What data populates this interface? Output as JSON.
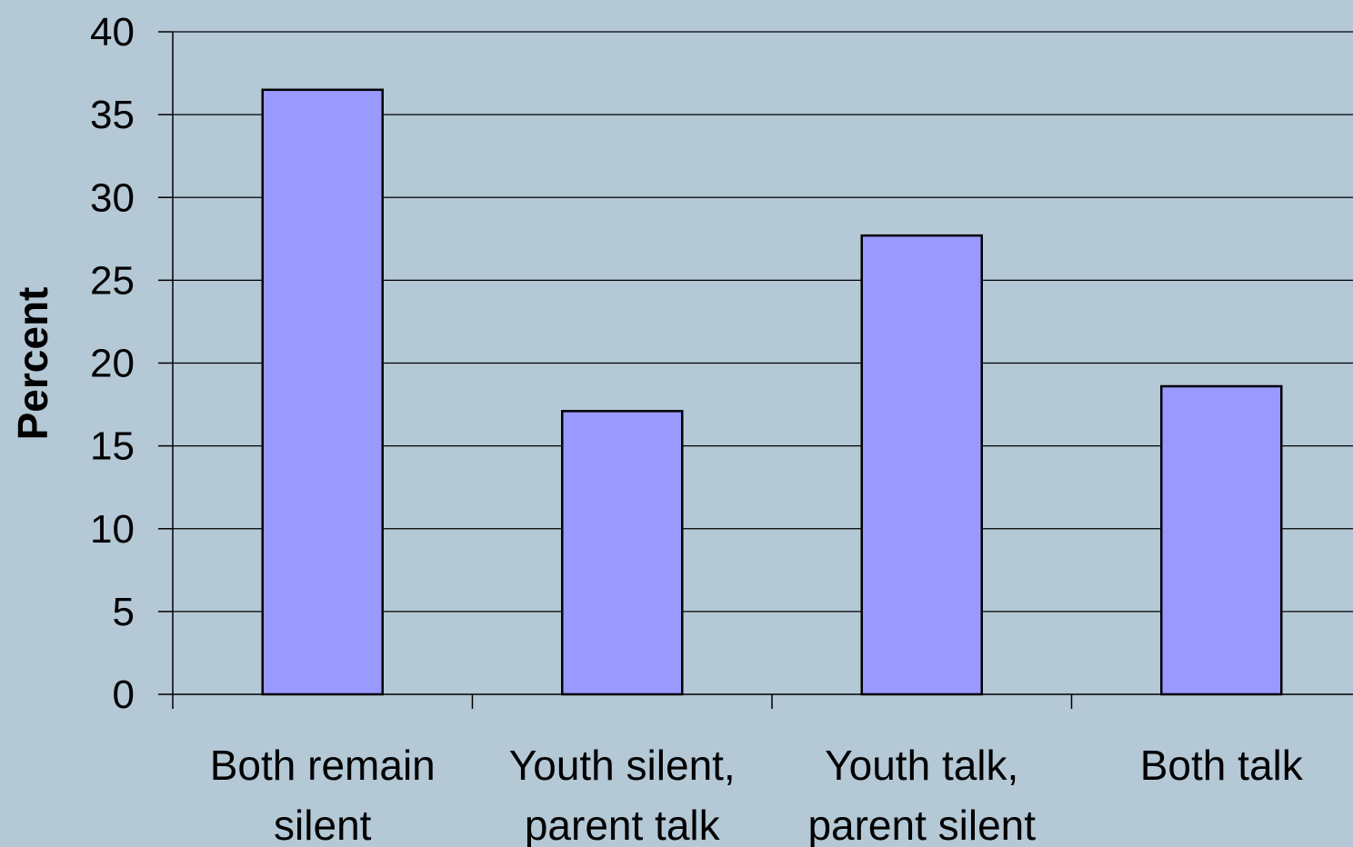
{
  "chart_data": {
    "type": "bar",
    "title": "",
    "xlabel": "",
    "ylabel": "Percent",
    "ylim": [
      0,
      40
    ],
    "yticks": [
      "0",
      "5",
      "10",
      "15",
      "20",
      "25",
      "30",
      "35",
      "40"
    ],
    "grid": "horizontal",
    "legend": "none",
    "categories": [
      [
        "Both remain",
        "silent"
      ],
      [
        "Youth silent,",
        "parent talk"
      ],
      [
        "Youth talk,",
        "parent silent"
      ],
      [
        "Both talk"
      ]
    ],
    "values": [
      36.5,
      17.1,
      27.7,
      18.6
    ],
    "colors": {
      "background": "#b4c8d6",
      "bar_fill": "#9999ff",
      "bar_stroke": "#000000",
      "grid": "#000000"
    }
  }
}
